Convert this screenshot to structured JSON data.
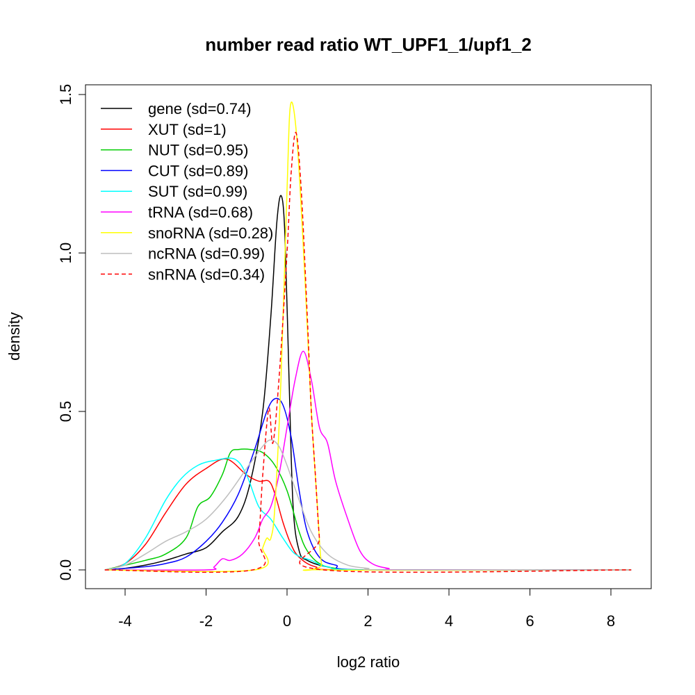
{
  "chart_data": {
    "type": "line",
    "title": "number read ratio WT_UPF1_1/upf1_2",
    "xlabel": "log2 ratio",
    "ylabel": "density",
    "xlim": [
      -4.5,
      8.5
    ],
    "ylim": [
      0,
      1.5
    ],
    "x_ticks": [
      -4,
      -2,
      0,
      2,
      4,
      6,
      8
    ],
    "x_tick_labels": [
      "-4",
      "-2",
      "0",
      "2",
      "4",
      "6",
      "8"
    ],
    "y_ticks": [
      0,
      0.5,
      1,
      1.5
    ],
    "y_tick_labels": [
      "0.0",
      "0.5",
      "1.0",
      "1.5"
    ],
    "grid": false,
    "legend_position": "top-left",
    "series": [
      {
        "name": "gene (sd=0.74)",
        "color": "#000000",
        "dash": false,
        "x": [
          -4.5,
          -4,
          -3.5,
          -3,
          -2.5,
          -2,
          -1.6,
          -1.2,
          -0.9,
          -0.6,
          -0.4,
          -0.25,
          -0.14,
          -0.05,
          0.05,
          0.15,
          0.3,
          0.5,
          1,
          2,
          8.5
        ],
        "y": [
          0,
          0.005,
          0.015,
          0.03,
          0.05,
          0.07,
          0.12,
          0.17,
          0.28,
          0.5,
          0.8,
          1.1,
          1.18,
          1.05,
          0.6,
          0.2,
          0.06,
          0.03,
          0.01,
          0,
          0
        ]
      },
      {
        "name": "XUT (sd=1)",
        "color": "#ff0000",
        "dash": false,
        "x": [
          -4.5,
          -4,
          -3.5,
          -3,
          -2.5,
          -2,
          -1.5,
          -1,
          -0.7,
          -0.45,
          -0.3,
          -0.1,
          0.1,
          0.3,
          0.7,
          1.5,
          8.5
        ],
        "y": [
          0,
          0.02,
          0.08,
          0.18,
          0.27,
          0.32,
          0.35,
          0.3,
          0.28,
          0.28,
          0.24,
          0.15,
          0.08,
          0.04,
          0.01,
          0,
          0
        ]
      },
      {
        "name": "NUT (sd=0.95)",
        "color": "#00cd00",
        "dash": false,
        "x": [
          -4.5,
          -3.5,
          -3,
          -2.5,
          -2.2,
          -1.9,
          -1.6,
          -1.4,
          -1.2,
          -0.9,
          -0.6,
          -0.3,
          0,
          0.3,
          0.5,
          0.8,
          1.2,
          2,
          8.5
        ],
        "y": [
          0,
          0.03,
          0.05,
          0.1,
          0.2,
          0.23,
          0.3,
          0.37,
          0.38,
          0.38,
          0.37,
          0.33,
          0.25,
          0.12,
          0.06,
          0.02,
          0.005,
          0,
          0
        ]
      },
      {
        "name": "CUT (sd=0.89)",
        "color": "#0000ff",
        "dash": false,
        "x": [
          -4.5,
          -3.5,
          -3,
          -2.5,
          -2,
          -1.6,
          -1.2,
          -0.8,
          -0.5,
          -0.3,
          -0.1,
          0.1,
          0.3,
          0.5,
          0.8,
          1.2,
          2,
          8.5
        ],
        "y": [
          0,
          0.01,
          0.02,
          0.04,
          0.09,
          0.15,
          0.24,
          0.38,
          0.5,
          0.54,
          0.52,
          0.42,
          0.25,
          0.12,
          0.04,
          0.015,
          0,
          0
        ]
      },
      {
        "name": "SUT (sd=0.99)",
        "color": "#00ffff",
        "dash": false,
        "x": [
          -4.5,
          -4,
          -3.5,
          -3,
          -2.6,
          -2.2,
          -1.8,
          -1.3,
          -1,
          -0.7,
          -0.4,
          -0.1,
          0.2,
          0.6,
          1,
          2,
          8.5
        ],
        "y": [
          0,
          0.02,
          0.1,
          0.22,
          0.29,
          0.33,
          0.345,
          0.35,
          0.3,
          0.2,
          0.16,
          0.1,
          0.05,
          0.03,
          0.01,
          0,
          0
        ]
      },
      {
        "name": "tRNA (sd=0.68)",
        "color": "#ff00ff",
        "dash": false,
        "x": [
          -4.5,
          -2,
          -1.8,
          -1.6,
          -1.4,
          -1.1,
          -0.8,
          -0.6,
          -0.4,
          -0.2,
          0,
          0.2,
          0.4,
          0.6,
          0.8,
          1,
          1.2,
          1.5,
          1.8,
          2.1,
          2.5,
          3,
          8.5
        ],
        "y": [
          0,
          0,
          0.01,
          0.035,
          0.03,
          0.05,
          0.1,
          0.16,
          0.2,
          0.3,
          0.45,
          0.6,
          0.69,
          0.6,
          0.45,
          0.4,
          0.28,
          0.16,
          0.06,
          0.02,
          0.005,
          0,
          0
        ]
      },
      {
        "name": "snoRNA (sd=0.28)",
        "color": "#ffff00",
        "dash": false,
        "x": [
          -4.5,
          -0.8,
          -0.6,
          -0.5,
          -0.4,
          -0.3,
          -0.15,
          0,
          0.09,
          0.25,
          0.45,
          0.6,
          0.75,
          0.85,
          1,
          8.5
        ],
        "y": [
          0,
          0,
          0.07,
          0.1,
          0.1,
          0.2,
          0.6,
          1.2,
          1.47,
          1.35,
          0.9,
          0.5,
          0.2,
          0.02,
          0,
          0
        ]
      },
      {
        "name": "ncRNA (sd=0.99)",
        "color": "#bebebe",
        "dash": false,
        "x": [
          -4.5,
          -4,
          -3.5,
          -3,
          -2.5,
          -2,
          -1.5,
          -1,
          -0.6,
          -0.4,
          -0.2,
          0,
          0.3,
          0.6,
          1,
          1.5,
          2,
          2.5,
          8.5
        ],
        "y": [
          0,
          0.015,
          0.05,
          0.09,
          0.12,
          0.16,
          0.23,
          0.32,
          0.39,
          0.41,
          0.39,
          0.33,
          0.22,
          0.12,
          0.05,
          0.015,
          0.005,
          0,
          0
        ]
      },
      {
        "name": "snRNA (sd=0.34)",
        "color": "#ff0000",
        "dash": true,
        "x": [
          -4.5,
          -0.85,
          -0.7,
          -0.6,
          -0.45,
          -0.35,
          -0.2,
          0,
          0.1,
          0.22,
          0.35,
          0.5,
          0.6,
          0.7,
          0.8,
          0.9,
          8.5
        ],
        "y": [
          0,
          0,
          0.1,
          0.3,
          0.51,
          0.4,
          0.6,
          1.0,
          1.25,
          1.38,
          1.2,
          0.8,
          0.5,
          0.3,
          0.1,
          0,
          0
        ]
      }
    ]
  }
}
